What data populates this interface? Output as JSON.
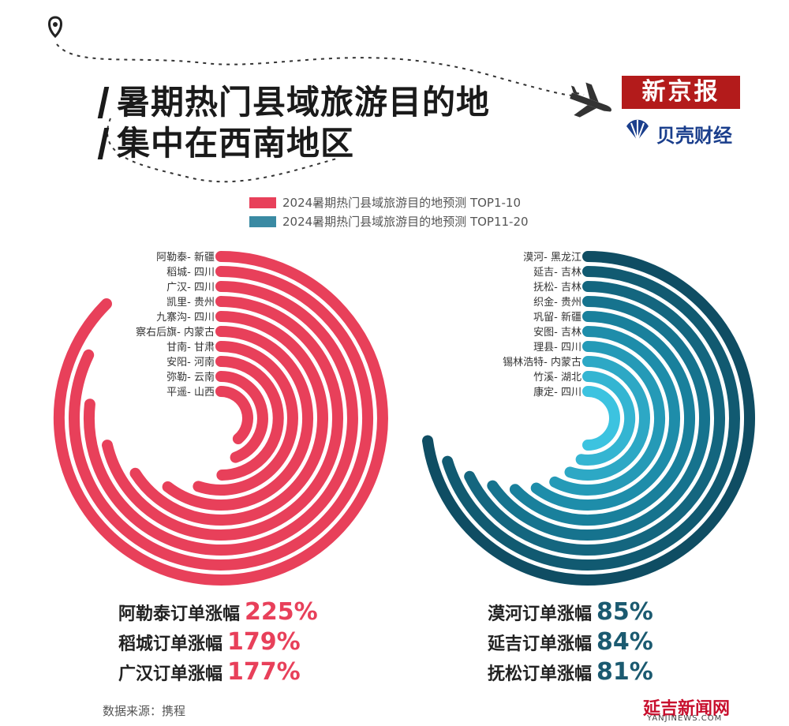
{
  "title": [
    "暑期热门县域旅游目的地",
    "集中在西南地区"
  ],
  "brand": {
    "xinjingbao": "新京报",
    "beike": "贝壳财经"
  },
  "chart_data": [
    {
      "type": "radial-bar",
      "legend": "2024暑期热门县域旅游目的地预测 TOP1-10",
      "color": "#e8405a",
      "categories": [
        "阿勒泰- 新疆",
        "稻城- 四川",
        "广汉- 四川",
        "凯里- 贵州",
        "九寨沟- 四川",
        "察右后旗- 内蒙古",
        "甘南- 甘肃",
        "安阳- 河南",
        "弥勒- 云南",
        "平遥- 山西"
      ],
      "values": [
        10,
        9,
        8,
        7,
        6,
        5,
        4,
        3,
        2,
        1
      ]
    },
    {
      "type": "radial-bar",
      "legend": "2024暑期热门县域旅游目的地预测 TOP11-20",
      "colors": [
        "#0f4d63",
        "#1a86a3",
        "#3cc3e0"
      ],
      "categories": [
        "漠河- 黑龙江",
        "延吉- 吉林",
        "抚松- 吉林",
        "织金- 贵州",
        "巩留- 新疆",
        "安图- 吉林",
        "理县- 四川",
        "锡林浩特- 内蒙古",
        "竹溪- 湖北",
        "康定- 四川"
      ],
      "values": [
        10,
        9,
        8,
        7,
        6,
        5,
        4,
        3,
        2,
        1
      ]
    }
  ],
  "stats_left": [
    {
      "label": "阿勒泰订单涨幅",
      "value": "225%"
    },
    {
      "label": "稻城订单涨幅",
      "value": "179%"
    },
    {
      "label": "广汉订单涨幅",
      "value": "177%"
    }
  ],
  "stats_right": [
    {
      "label": "漠河订单涨幅",
      "value": "85%"
    },
    {
      "label": "延吉订单涨幅",
      "value": "84%"
    },
    {
      "label": "抚松订单涨幅",
      "value": "81%"
    }
  ],
  "source": "数据来源：携程",
  "footer": {
    "name": "延吉新闻网",
    "url": "YANJINEWS.COM"
  },
  "stat_colors": {
    "left": "#e8405a",
    "right": "#1b5a70"
  }
}
